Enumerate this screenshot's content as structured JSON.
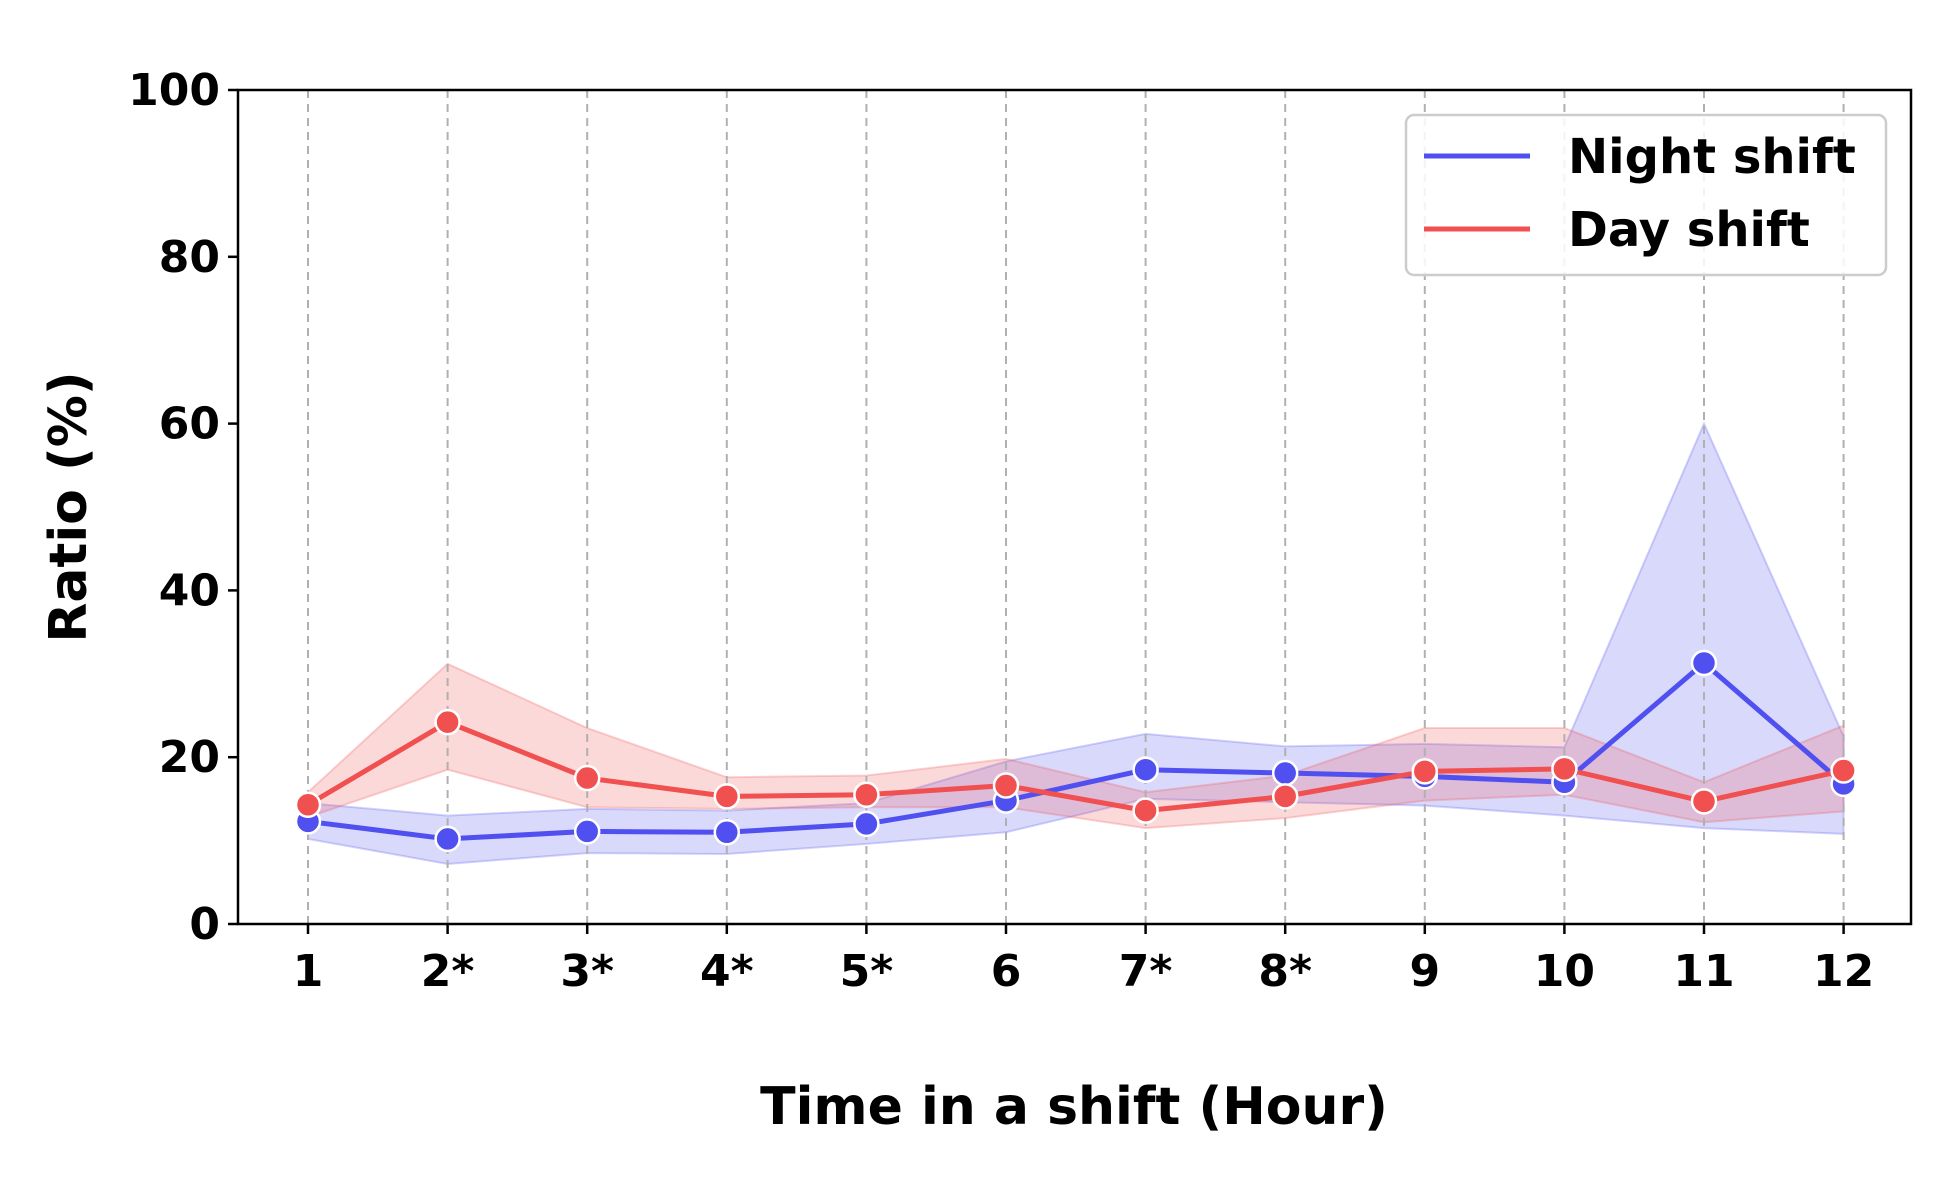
{
  "chart_data": {
    "type": "line",
    "title": "",
    "xlabel": "Time in a shift (Hour)",
    "ylabel": "Ratio (%)",
    "categories": [
      "1",
      "2*",
      "3*",
      "4*",
      "5*",
      "6",
      "7*",
      "8*",
      "9",
      "10",
      "11",
      "12"
    ],
    "ylim": [
      0,
      100
    ],
    "yticks": [
      "0",
      "20",
      "40",
      "60",
      "80",
      "100"
    ],
    "grid": "vertical dashed",
    "legend_position": "top-right",
    "series": [
      {
        "name": "Night shift",
        "color": "#5050f0",
        "values": [
          12.3,
          10.2,
          11.1,
          11.0,
          12.0,
          14.8,
          18.5,
          18.1,
          17.7,
          17.0,
          31.3,
          16.8
        ],
        "lower": [
          10.2,
          7.2,
          8.5,
          8.4,
          9.6,
          11.0,
          15.0,
          14.6,
          14.2,
          13.0,
          11.5,
          10.8
        ],
        "upper": [
          14.5,
          13.0,
          13.8,
          13.6,
          14.5,
          19.5,
          22.8,
          21.3,
          21.6,
          21.2,
          60.0,
          22.5
        ]
      },
      {
        "name": "Day shift",
        "color": "#f05050",
        "values": [
          14.3,
          24.2,
          17.5,
          15.3,
          15.5,
          16.6,
          13.6,
          15.3,
          18.3,
          18.6,
          14.7,
          18.4
        ],
        "lower": [
          12.8,
          18.5,
          14.0,
          13.8,
          14.0,
          14.0,
          11.5,
          12.7,
          14.8,
          15.5,
          12.2,
          13.5
        ],
        "upper": [
          15.8,
          31.2,
          23.5,
          17.6,
          17.8,
          19.8,
          15.8,
          17.8,
          23.5,
          23.5,
          17.0,
          23.8
        ]
      }
    ]
  }
}
